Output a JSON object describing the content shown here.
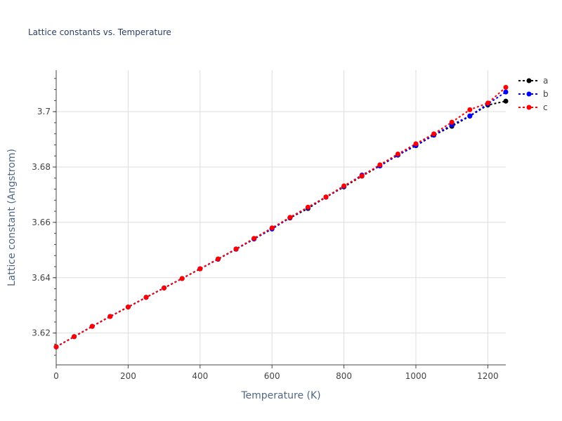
{
  "chart_data": {
    "type": "line",
    "title": "Lattice constants vs. Temperature",
    "xlabel": "Temperature (K)",
    "ylabel": "Lattice constant (Angstrom)",
    "xlim": [
      0,
      1250
    ],
    "ylim": [
      3.6085,
      3.715
    ],
    "xticks": [
      0,
      200,
      400,
      600,
      800,
      1000,
      1200
    ],
    "yticks": [
      3.62,
      3.64,
      3.66,
      3.68,
      3.7
    ],
    "ytick_labels": [
      "3.62",
      "3.64",
      "3.66",
      "3.68",
      "3.7"
    ],
    "grid": true,
    "legend_position": "top-right",
    "x": [
      0,
      50,
      100,
      150,
      200,
      250,
      300,
      350,
      400,
      450,
      500,
      550,
      600,
      650,
      700,
      750,
      800,
      850,
      900,
      950,
      1000,
      1050,
      1100,
      1150,
      1200,
      1250
    ],
    "series": [
      {
        "name": "a",
        "color": "#000000",
        "values": [
          3.615,
          3.6187,
          3.6224,
          3.626,
          3.6294,
          3.6329,
          3.6363,
          3.6397,
          3.6432,
          3.6467,
          3.6503,
          3.654,
          3.6578,
          3.6616,
          3.665,
          3.6691,
          3.6728,
          3.6767,
          3.6804,
          3.6843,
          3.6877,
          3.6915,
          3.6947,
          3.6984,
          3.7024,
          3.7038
        ]
      },
      {
        "name": "b",
        "color": "#0000ff",
        "values": [
          3.615,
          3.6187,
          3.6224,
          3.626,
          3.6294,
          3.6329,
          3.6363,
          3.6397,
          3.6432,
          3.6467,
          3.6503,
          3.654,
          3.6576,
          3.6617,
          3.6653,
          3.6691,
          3.673,
          3.6771,
          3.6804,
          3.6843,
          3.6878,
          3.6916,
          3.6952,
          3.6985,
          3.7028,
          3.7071
        ]
      },
      {
        "name": "c",
        "color": "#ff0000",
        "values": [
          3.615,
          3.6187,
          3.6224,
          3.626,
          3.6294,
          3.6329,
          3.6363,
          3.6397,
          3.6432,
          3.6468,
          3.6504,
          3.6542,
          3.658,
          3.6618,
          3.6655,
          3.6692,
          3.6732,
          3.6768,
          3.6808,
          3.6847,
          3.6884,
          3.692,
          3.6962,
          3.7007,
          3.7031,
          3.7088
        ]
      }
    ]
  }
}
